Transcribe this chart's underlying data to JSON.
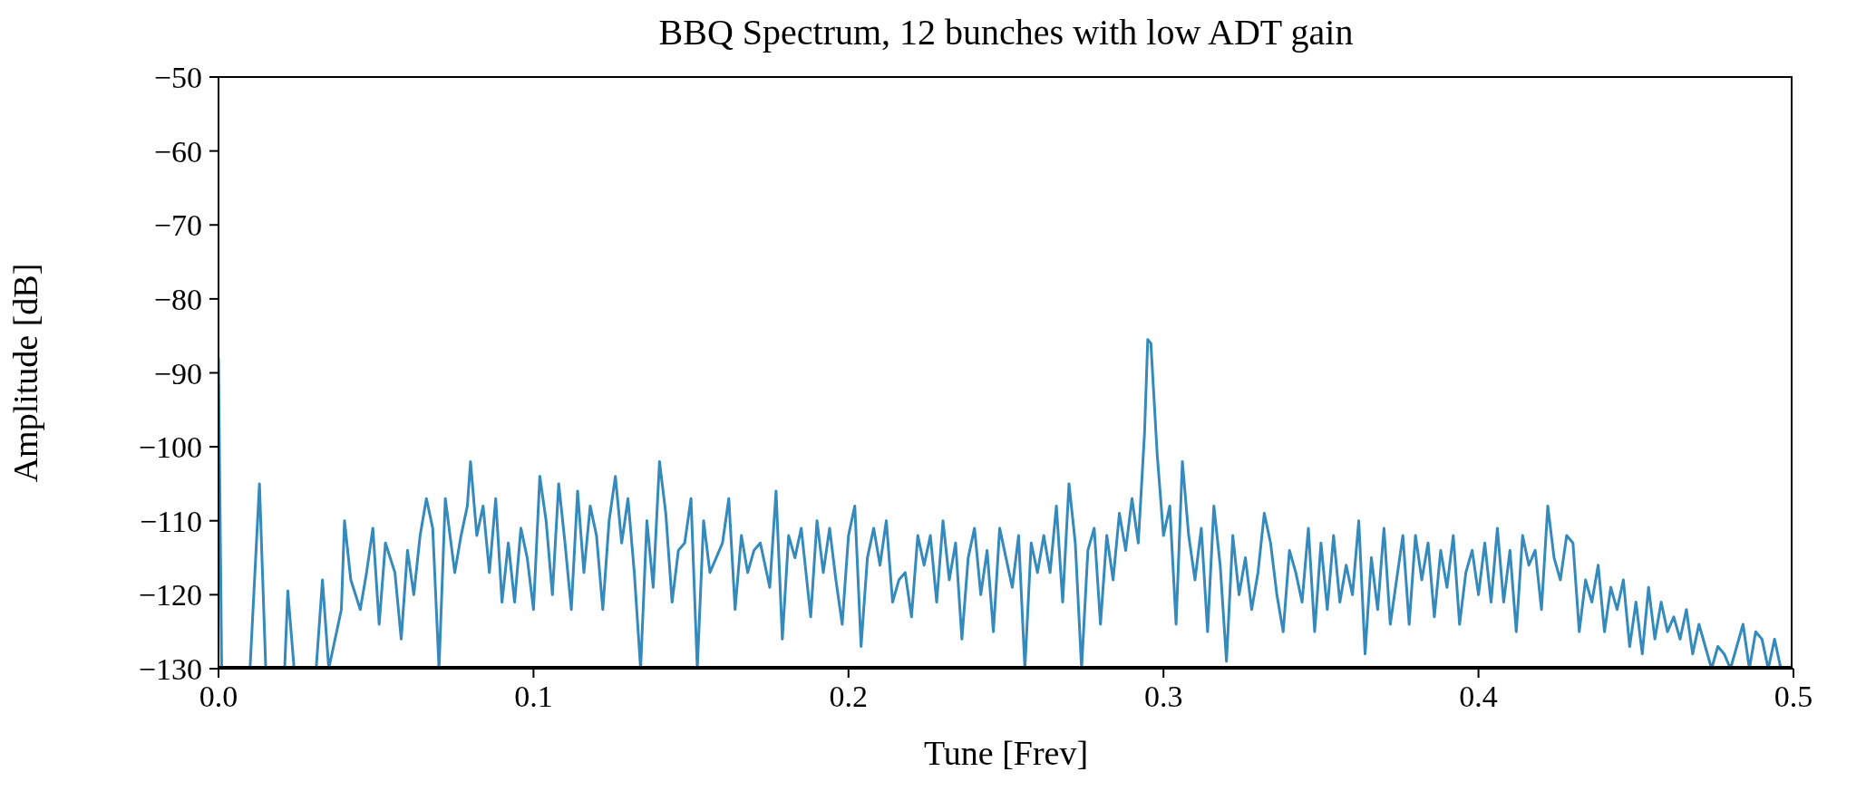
{
  "chart_data": {
    "type": "line",
    "title": "BBQ Spectrum, 12 bunches with low ADT gain",
    "xlabel": "Tune [Frev]",
    "ylabel": "Amplitude [dB]",
    "xlim": [
      0,
      0.5
    ],
    "xticks": [
      {
        "value": 0,
        "label": "0.0"
      },
      0.1,
      0.2,
      0.3,
      0.4,
      0.5
    ],
    "ylim": [
      -130,
      -50
    ],
    "yticks": [
      {
        "value": -130,
        "label": "−130"
      },
      {
        "value": -120,
        "label": "−120"
      },
      {
        "value": -110,
        "label": "−110"
      },
      {
        "value": -100,
        "label": "−100"
      },
      {
        "value": -90,
        "label": "−90"
      },
      {
        "value": -80,
        "label": "−80"
      },
      {
        "value": -70,
        "label": "−70"
      },
      {
        "value": -60,
        "label": "−60"
      },
      {
        "value": -50,
        "label": "−50"
      }
    ],
    "legend": false,
    "marker": "none",
    "line_style": "solid",
    "series": [
      {
        "color": "#348abd",
        "x": [
          0,
          0.001,
          0.01,
          0.013,
          0.015,
          0.021,
          0.022,
          0.024,
          0.031,
          0.033,
          0.035,
          0.039,
          0.04,
          0.042,
          0.045,
          0.047,
          0.049,
          0.051,
          0.053,
          0.056,
          0.058,
          0.06,
          0.062,
          0.064,
          0.066,
          0.068,
          0.07,
          0.072,
          0.075,
          0.077,
          0.079,
          0.08,
          0.082,
          0.084,
          0.086,
          0.088,
          0.09,
          0.092,
          0.094,
          0.096,
          0.098,
          0.1,
          0.102,
          0.104,
          0.106,
          0.108,
          0.11,
          0.112,
          0.114,
          0.116,
          0.118,
          0.12,
          0.122,
          0.124,
          0.126,
          0.128,
          0.13,
          0.132,
          0.134,
          0.136,
          0.138,
          0.14,
          0.142,
          0.144,
          0.146,
          0.148,
          0.15,
          0.152,
          0.154,
          0.156,
          0.158,
          0.16,
          0.162,
          0.164,
          0.166,
          0.168,
          0.17,
          0.172,
          0.175,
          0.177,
          0.179,
          0.181,
          0.183,
          0.185,
          0.188,
          0.19,
          0.192,
          0.194,
          0.196,
          0.198,
          0.2,
          0.202,
          0.204,
          0.206,
          0.208,
          0.21,
          0.212,
          0.214,
          0.216,
          0.218,
          0.22,
          0.222,
          0.224,
          0.226,
          0.228,
          0.23,
          0.232,
          0.234,
          0.236,
          0.238,
          0.24,
          0.242,
          0.244,
          0.246,
          0.248,
          0.25,
          0.252,
          0.254,
          0.256,
          0.258,
          0.26,
          0.262,
          0.264,
          0.266,
          0.268,
          0.27,
          0.272,
          0.274,
          0.276,
          0.278,
          0.28,
          0.282,
          0.284,
          0.286,
          0.288,
          0.29,
          0.292,
          0.294,
          0.295,
          0.296,
          0.298,
          0.3,
          0.302,
          0.304,
          0.306,
          0.308,
          0.31,
          0.312,
          0.314,
          0.316,
          0.318,
          0.32,
          0.322,
          0.324,
          0.326,
          0.328,
          0.33,
          0.332,
          0.334,
          0.336,
          0.338,
          0.34,
          0.342,
          0.344,
          0.346,
          0.348,
          0.35,
          0.352,
          0.354,
          0.356,
          0.358,
          0.36,
          0.362,
          0.364,
          0.366,
          0.368,
          0.37,
          0.372,
          0.374,
          0.376,
          0.378,
          0.38,
          0.382,
          0.384,
          0.386,
          0.388,
          0.39,
          0.392,
          0.394,
          0.396,
          0.398,
          0.4,
          0.402,
          0.404,
          0.406,
          0.408,
          0.41,
          0.412,
          0.414,
          0.416,
          0.418,
          0.42,
          0.422,
          0.424,
          0.426,
          0.428,
          0.43,
          0.432,
          0.434,
          0.436,
          0.438,
          0.44,
          0.442,
          0.444,
          0.446,
          0.448,
          0.45,
          0.452,
          0.454,
          0.456,
          0.458,
          0.46,
          0.462,
          0.464,
          0.466,
          0.468,
          0.47,
          0.472,
          0.474,
          0.476,
          0.478,
          0.48,
          0.482,
          0.484,
          0.486,
          0.488,
          0.49,
          0.492,
          0.494,
          0.496
        ],
        "values": [
          -88,
          -130,
          -130,
          -105,
          -130,
          -130,
          -119.5,
          -130,
          -130,
          -118,
          -130,
          -122,
          -110,
          -118,
          -122,
          -117,
          -111,
          -124,
          -113,
          -117,
          -126,
          -114,
          -120,
          -112,
          -107,
          -111,
          -130,
          -107,
          -117,
          -112,
          -108,
          -102,
          -112,
          -108,
          -117,
          -107,
          -121,
          -113,
          -121,
          -111,
          -115,
          -122,
          -104,
          -110,
          -120,
          -105,
          -113,
          -122,
          -106,
          -117,
          -108,
          -112,
          -122,
          -110,
          -104,
          -113,
          -107,
          -117,
          -130,
          -110,
          -119,
          -102,
          -109,
          -121,
          -114,
          -113,
          -107,
          -130,
          -110,
          -117,
          -115,
          -113,
          -107,
          -122,
          -112,
          -117,
          -114,
          -113,
          -119,
          -106,
          -126,
          -112,
          -115,
          -111,
          -123,
          -110,
          -117,
          -111,
          -118,
          -124,
          -112,
          -108,
          -127,
          -115,
          -111,
          -116,
          -110,
          -121,
          -118,
          -117,
          -123,
          -112,
          -116,
          -112,
          -121,
          -110,
          -118,
          -113,
          -126,
          -115,
          -111,
          -120,
          -114,
          -125,
          -111,
          -115,
          -119,
          -112,
          -130,
          -113,
          -117,
          -112,
          -117,
          -108,
          -121,
          -105,
          -113,
          -130,
          -114,
          -111,
          -124,
          -112,
          -118,
          -109,
          -114,
          -107,
          -113,
          -98,
          -85.5,
          -86,
          -101,
          -112,
          -108,
          -124,
          -102,
          -112,
          -118,
          -111,
          -125,
          -108,
          -116,
          -129,
          -112,
          -120,
          -115,
          -122,
          -117,
          -109,
          -113,
          -120,
          -125,
          -114,
          -117,
          -121,
          -111,
          -125,
          -113,
          -122,
          -112,
          -121,
          -116,
          -120,
          -110,
          -128,
          -115,
          -122,
          -111,
          -124,
          -118,
          -112,
          -124,
          -112,
          -118,
          -113,
          -123,
          -114,
          -119,
          -112,
          -124,
          -117,
          -114,
          -120,
          -113,
          -121,
          -111,
          -121,
          -114,
          -125,
          -112,
          -116,
          -114,
          -122,
          -108,
          -115,
          -118,
          -112,
          -113,
          -125,
          -118,
          -121,
          -116,
          -125,
          -119,
          -122,
          -118,
          -127,
          -121,
          -128,
          -119,
          -126,
          -121,
          -125,
          -123,
          -126,
          -122,
          -128,
          -124,
          -127,
          -130,
          -127,
          -128,
          -130,
          -127,
          -124,
          -130,
          -125,
          -126,
          -130,
          -126,
          -130
        ]
      }
    ]
  }
}
